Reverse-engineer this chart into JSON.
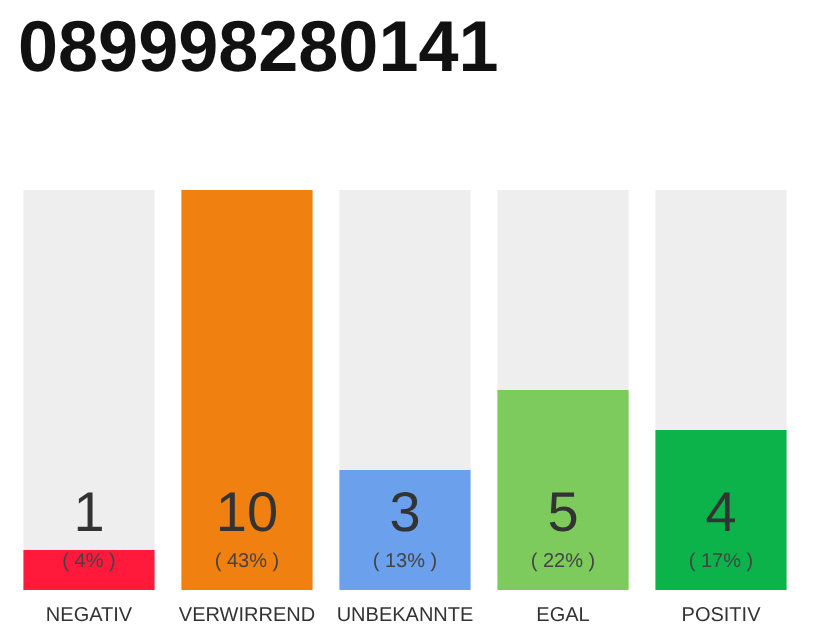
{
  "chart_data": {
    "type": "bar",
    "title": "089998280141",
    "categories": [
      "NEGATIV",
      "VERWIRREND",
      "UNBEKANNTE",
      "EGAL",
      "POSITIV"
    ],
    "values": [
      1,
      10,
      3,
      5,
      4
    ],
    "colors": [
      "#ff1a3c",
      "#f0800f",
      "#6aa0ec",
      "#7ccb5c",
      "#0bb34a"
    ],
    "value_labels": [
      "1\n( 4% )",
      "10\n( 43% )",
      "3\n( 13% )",
      "5\n( 22% )",
      "4\n( 17% )"
    ],
    "ylim": [
      0,
      10
    ],
    "tick_labels": "x"
  }
}
